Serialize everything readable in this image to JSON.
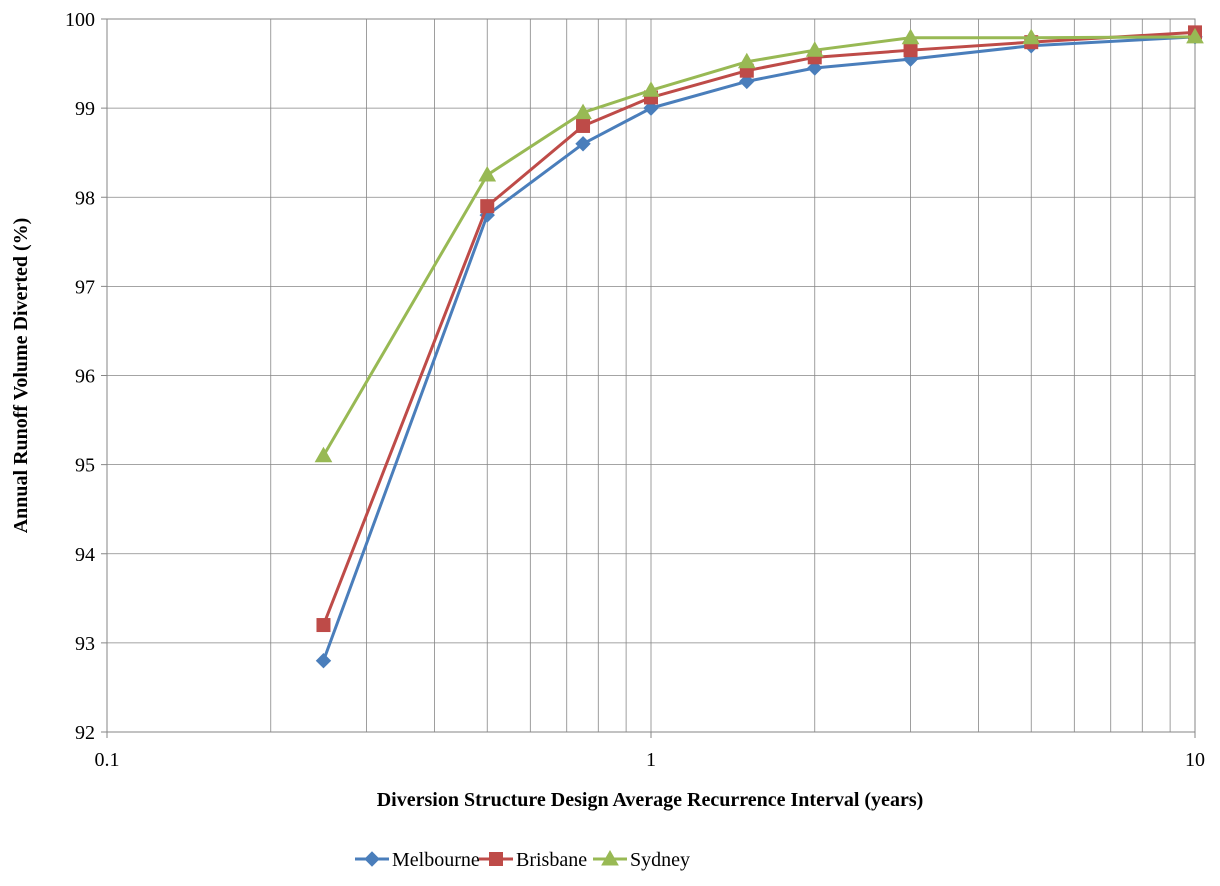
{
  "chart_data": {
    "type": "line",
    "title": "",
    "xlabel": "Diversion Structure Design Average Recurrence Interval (years)",
    "ylabel": "Annual Runoff Volume Diverted (%)",
    "x_scale": "log",
    "xlim": [
      0.1,
      10
    ],
    "ylim": [
      92,
      100
    ],
    "x_ticks": [
      0.1,
      1,
      10
    ],
    "x_tick_labels": [
      "0.1",
      "1",
      "10"
    ],
    "y_ticks": [
      92,
      93,
      94,
      95,
      96,
      97,
      98,
      99,
      100
    ],
    "y_tick_labels": [
      "92",
      "93",
      "94",
      "95",
      "96",
      "97",
      "98",
      "99",
      "100"
    ],
    "grid": true,
    "legend_position": "bottom",
    "x": [
      0.25,
      0.5,
      0.75,
      1,
      1.5,
      2,
      3,
      5,
      10
    ],
    "series": [
      {
        "name": "Melbourne",
        "color": "#4a7ebb",
        "marker": "diamond",
        "values": [
          92.8,
          97.8,
          98.6,
          99.0,
          99.3,
          99.45,
          99.55,
          99.7,
          99.8
        ]
      },
      {
        "name": "Brisbane",
        "color": "#be4b48",
        "marker": "square",
        "values": [
          93.2,
          97.9,
          98.8,
          99.12,
          99.42,
          99.57,
          99.65,
          99.74,
          99.85
        ]
      },
      {
        "name": "Sydney",
        "color": "#98b954",
        "marker": "triangle",
        "values": [
          95.1,
          98.25,
          98.95,
          99.2,
          99.52,
          99.65,
          99.79,
          99.79,
          99.8
        ]
      }
    ]
  }
}
